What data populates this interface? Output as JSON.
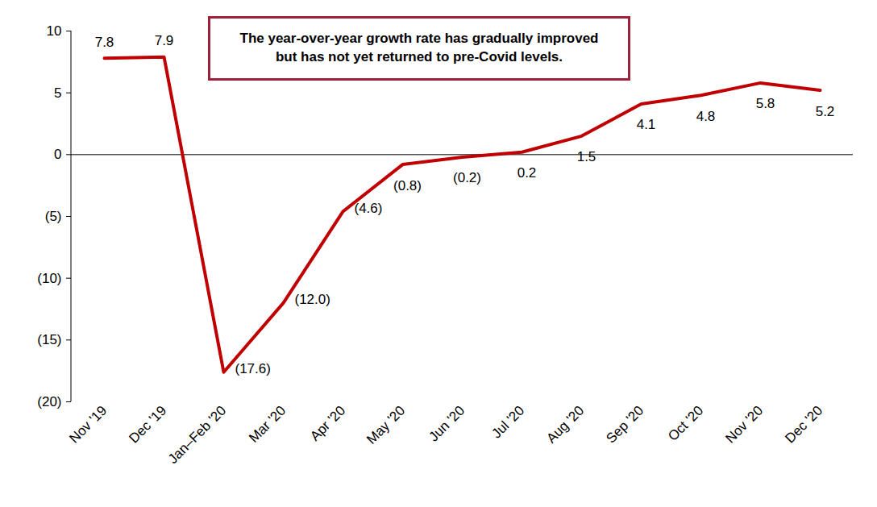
{
  "chart_data": {
    "type": "line",
    "annotation": "The year-over-year growth rate has gradually improved\nbut has not yet returned to pre-Covid levels.",
    "categories": [
      "Nov '19",
      "Dec '19",
      "Jan–Feb '20",
      "Mar '20",
      "Apr '20",
      "May '20",
      "Jun '20",
      "Jul '20",
      "Aug '20",
      "Sep '20",
      "Oct '20",
      "Nov '20",
      "Dec '20"
    ],
    "values": [
      7.8,
      7.9,
      -17.6,
      -12.0,
      -4.6,
      -0.8,
      -0.2,
      0.2,
      1.5,
      4.1,
      4.8,
      5.8,
      5.2
    ],
    "value_labels": [
      "7.8",
      "7.9",
      "(17.6)",
      "(12.0)",
      "(4.6)",
      "(0.8)",
      "(0.2)",
      "0.2",
      "1.5",
      "4.1",
      "4.8",
      "5.8",
      "5.2"
    ],
    "color": "#C00000",
    "ylim": [
      -20,
      10
    ],
    "yticks": [
      {
        "value": -20,
        "label": "(20)"
      },
      {
        "value": -15,
        "label": "(15)"
      },
      {
        "value": -10,
        "label": "(10)"
      },
      {
        "value": -5,
        "label": "(5)"
      },
      0,
      5,
      10
    ],
    "data_labels": true,
    "grid": false
  }
}
